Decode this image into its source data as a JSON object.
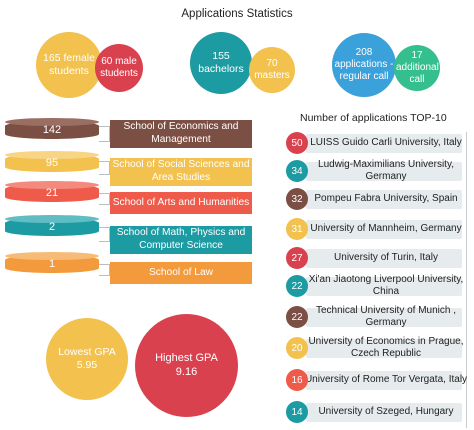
{
  "title": "Applications Statistics",
  "colors": {
    "yellow": "#f2c14e",
    "red": "#d9414e",
    "teal": "#1d9ba3",
    "orange": "#f39a3c",
    "blue": "#3aa1da",
    "green": "#36bf8e",
    "brown": "#7c4f45",
    "coral": "#ef5b4a",
    "bar": "#e6ebee"
  },
  "students": {
    "female": "165 female students",
    "male": "60 male students"
  },
  "degrees": {
    "bachelors": "155 bachelors",
    "masters": "70 masters"
  },
  "calls": {
    "regular": "208 applications - regular call",
    "additional": "17 additional call"
  },
  "schools": [
    {
      "count": "142",
      "name": "School of Economics and Management",
      "color": "#7c4f45"
    },
    {
      "count": "95",
      "name": "School of Social Sciences and Area Studies",
      "color": "#f2c14e"
    },
    {
      "count": "21",
      "name": "School of Arts and Humanities",
      "color": "#ef5b4a"
    },
    {
      "count": "2",
      "name": "School of Math, Physics and Computer Science",
      "color": "#1d9ba3"
    },
    {
      "count": "1",
      "name": "School of Law",
      "color": "#f39a3c"
    }
  ],
  "gpa": {
    "lowest_label": "Lowest GPA",
    "lowest_value": "5.95",
    "highest_label": "Highest GPA",
    "highest_value": "9.16"
  },
  "top10": {
    "title": "Number of applications TOP-10",
    "items": [
      {
        "count": "50",
        "name": "LUISS Guido Carli University, Italy",
        "color": "#d9414e"
      },
      {
        "count": "34",
        "name": "Ludwig-Maximilians University, Germany",
        "color": "#1d9ba3"
      },
      {
        "count": "32",
        "name": "Pompeu Fabra University, Spain",
        "color": "#7c4f45"
      },
      {
        "count": "31",
        "name": "University of Mannheim, Germany",
        "color": "#f2c14e"
      },
      {
        "count": "27",
        "name": "University of Turin, Italy",
        "color": "#d9414e"
      },
      {
        "count": "22",
        "name": "Xi'an Jiaotong Liverpool University, China",
        "color": "#1d9ba3"
      },
      {
        "count": "22",
        "name": "Technical University of Munich , Germany",
        "color": "#7c4f45"
      },
      {
        "count": "20",
        "name": "University of Economics in Prague, Czech Republic",
        "color": "#f2c14e"
      },
      {
        "count": "16",
        "name": "University of Rome Tor Vergata, Italy",
        "color": "#ef5b4a"
      },
      {
        "count": "14",
        "name": "University of Szeged, Hungary",
        "color": "#1d9ba3"
      }
    ]
  }
}
